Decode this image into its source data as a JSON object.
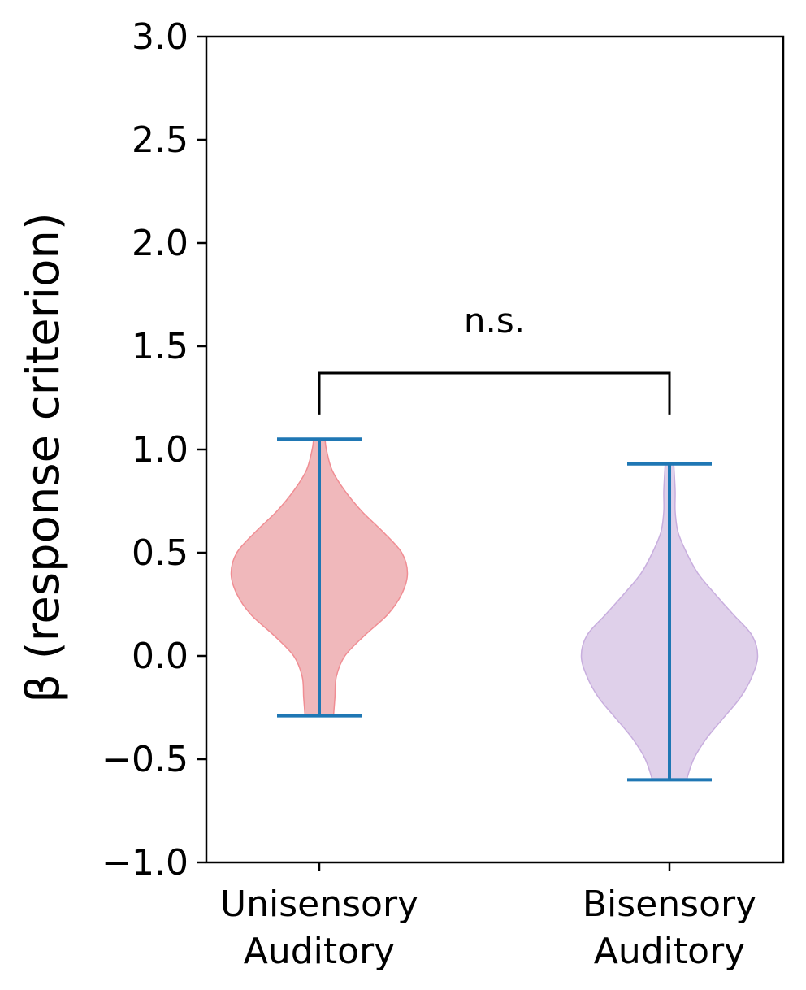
{
  "chart_data": {
    "type": "violin",
    "ylabel": "β (response criterion)",
    "ylim": [
      -1.0,
      3.0
    ],
    "yticks": [
      -1.0,
      -0.5,
      0.0,
      0.5,
      1.0,
      1.5,
      2.0,
      2.5,
      3.0
    ],
    "ytick_labels": [
      "−1.0",
      "−0.5",
      "0.0",
      "0.5",
      "1.0",
      "1.5",
      "2.0",
      "2.5",
      "3.0"
    ],
    "categories": [
      {
        "line1": "Unisensory",
        "line2": "Auditory"
      },
      {
        "line1": "Bisensory",
        "line2": "Auditory"
      }
    ],
    "series": [
      {
        "category": "Unisensory Auditory",
        "min": -0.29,
        "max": 1.05,
        "color": "#f0b8bb",
        "edge_color": "#f08d93",
        "density_profile": [
          {
            "y": -0.29,
            "half_width": 0.1
          },
          {
            "y": -0.2,
            "half_width": 0.11
          },
          {
            "y": -0.1,
            "half_width": 0.12
          },
          {
            "y": 0.0,
            "half_width": 0.18
          },
          {
            "y": 0.1,
            "half_width": 0.32
          },
          {
            "y": 0.2,
            "half_width": 0.48
          },
          {
            "y": 0.3,
            "half_width": 0.58
          },
          {
            "y": 0.4,
            "half_width": 0.62
          },
          {
            "y": 0.5,
            "half_width": 0.58
          },
          {
            "y": 0.6,
            "half_width": 0.45
          },
          {
            "y": 0.7,
            "half_width": 0.3
          },
          {
            "y": 0.8,
            "half_width": 0.18
          },
          {
            "y": 0.9,
            "half_width": 0.09
          },
          {
            "y": 1.0,
            "half_width": 0.05
          },
          {
            "y": 1.05,
            "half_width": 0.04
          }
        ]
      },
      {
        "category": "Bisensory Auditory",
        "min": -0.6,
        "max": 0.93,
        "color": "#dfd0ea",
        "edge_color": "#c8aede",
        "density_profile": [
          {
            "y": -0.6,
            "half_width": 0.12
          },
          {
            "y": -0.5,
            "half_width": 0.17
          },
          {
            "y": -0.4,
            "half_width": 0.26
          },
          {
            "y": -0.3,
            "half_width": 0.38
          },
          {
            "y": -0.2,
            "half_width": 0.5
          },
          {
            "y": -0.1,
            "half_width": 0.58
          },
          {
            "y": 0.0,
            "half_width": 0.62
          },
          {
            "y": 0.1,
            "half_width": 0.58
          },
          {
            "y": 0.2,
            "half_width": 0.45
          },
          {
            "y": 0.3,
            "half_width": 0.32
          },
          {
            "y": 0.4,
            "half_width": 0.2
          },
          {
            "y": 0.5,
            "half_width": 0.12
          },
          {
            "y": 0.6,
            "half_width": 0.06
          },
          {
            "y": 0.7,
            "half_width": 0.04
          },
          {
            "y": 0.8,
            "half_width": 0.04
          },
          {
            "y": 0.93,
            "half_width": 0.03
          }
        ]
      }
    ],
    "whisker_color": "#1f77b4",
    "annotation": {
      "text": "n.s.",
      "bracket_y": 1.37,
      "bracket_drop": 1.17
    },
    "grid": false,
    "legend": "none"
  }
}
